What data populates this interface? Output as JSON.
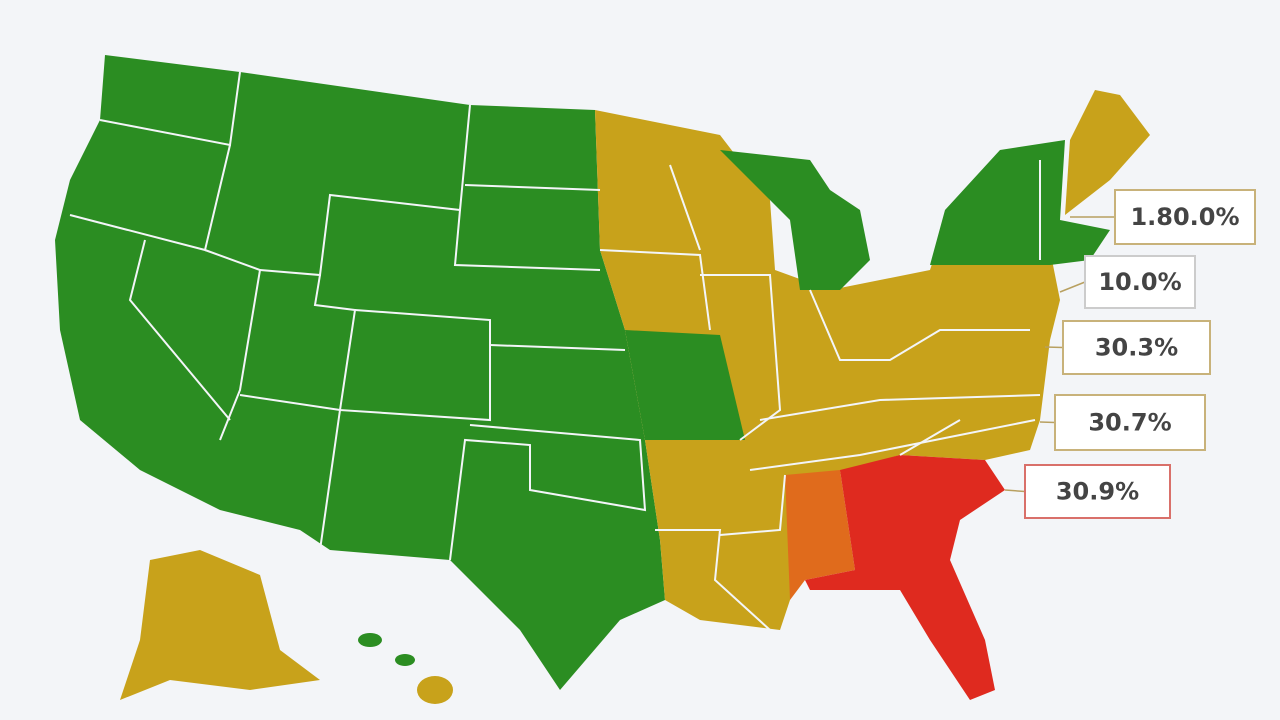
{
  "callouts": [
    {
      "label": "1.80.0%"
    },
    {
      "label": "10.0%"
    },
    {
      "label": "30.3%"
    },
    {
      "label": "30.7%"
    },
    {
      "label": "30.9%"
    }
  ]
}
